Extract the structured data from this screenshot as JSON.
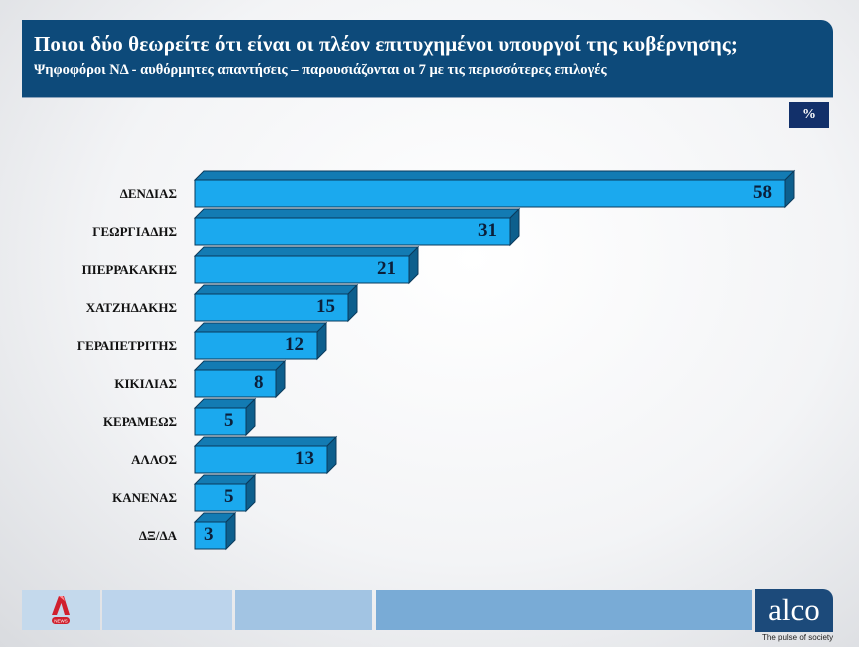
{
  "header": {
    "title": "Ποιοι δύο θεωρείτε ότι είναι οι πλέον επιτυχημένοι υπουργοί της κυβέρνησης;",
    "subtitle": "Ψηφοφόροι ΝΔ  - αυθόρμητες απαντήσεις – παρουσιάζονται οι 7 με τις περισσότερες επιλογές"
  },
  "unit_badge": "%",
  "colors": {
    "bar_face": "#1ba9ee",
    "bar_top": "#137bb3",
    "bar_side": "#0d5f8d",
    "header_bg": "#0d4a7a",
    "badge_bg": "#12306a"
  },
  "chart_data": {
    "type": "bar",
    "orientation": "horizontal",
    "title": "Ποιοι δύο θεωρείτε ότι είναι οι πλέον επιτυχημένοι υπουργοί της κυβέρνησης;",
    "subtitle": "Ψηφοφόροι ΝΔ  - αυθόρμητες απαντήσεις – παρουσιάζονται οι 7 με τις περισσότερες επιλογές",
    "categories": [
      "ΔΕΝΔΙΑΣ",
      "ΓΕΩΡΓΙΑΔΗΣ",
      "ΠΙΕΡΡΑΚΑΚΗΣ",
      "ΧΑΤΖΗΔΑΚΗΣ",
      "ΓΕΡΑΠΕΤΡΙΤΗΣ",
      "ΚΙΚΙΛΙΑΣ",
      "ΚΕΡΑΜΕΩΣ",
      "ΑΛΛΟΣ",
      "ΚΑΝΕΝΑΣ",
      "ΔΞ/ΔΑ"
    ],
    "values": [
      58,
      31,
      21,
      15,
      12,
      8,
      5,
      13,
      5,
      3
    ],
    "xlabel": "",
    "ylabel": "",
    "unit": "%",
    "data_labels": true,
    "grid": false,
    "style": "3d"
  },
  "footer": {
    "left_logo": "Alpha News",
    "left_logo_badge": "NEWS",
    "brand": "alco",
    "tagline": "The pulse of society"
  }
}
